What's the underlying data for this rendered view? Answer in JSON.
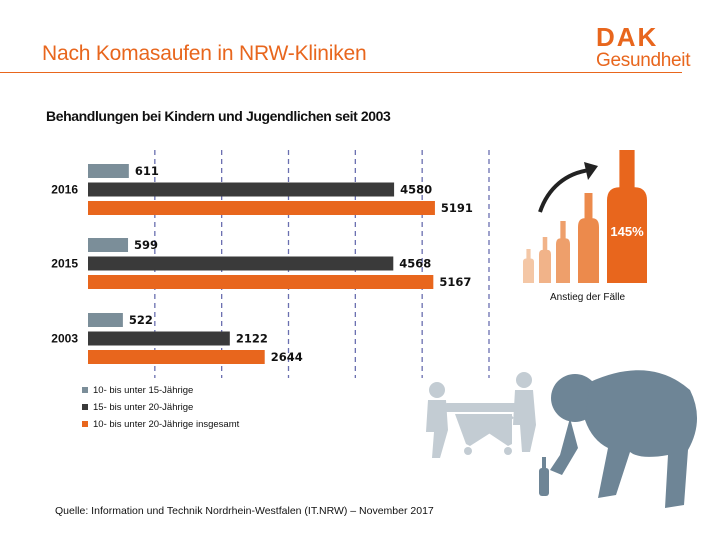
{
  "header": {
    "title": "Nach Komasaufen in NRW-Kliniken",
    "logo_mark": "DAK",
    "logo_text": "Gesundheit"
  },
  "colors": {
    "accent": "#e8661d",
    "series": [
      "#7b8e99",
      "#3a3a3a",
      "#e8661d"
    ],
    "silhouette": "#6e8596"
  },
  "chart_data": {
    "type": "bar",
    "orientation": "horizontal",
    "title": "Behandlungen bei Kindern und Jugendlichen seit 2003",
    "categories": [
      "2016",
      "2015",
      "2003"
    ],
    "series": [
      {
        "name": "10- bis unter 15-Jährige",
        "values": [
          611,
          599,
          522
        ]
      },
      {
        "name": "15- bis unter 20-Jährige",
        "values": [
          4580,
          4568,
          2122
        ]
      },
      {
        "name": "10- bis unter 20-Jährige insgesamt",
        "values": [
          5191,
          5167,
          2644
        ]
      }
    ],
    "xlim": [
      0,
      6000
    ],
    "grid": true,
    "legend_position": "bottom-left"
  },
  "infographic": {
    "percent_label": "145%",
    "caption": "Anstieg der Fälle"
  },
  "source": "Quelle:  Information  und Technik Nordrhein-Westfalen  (IT.NRW)  – November  2017"
}
